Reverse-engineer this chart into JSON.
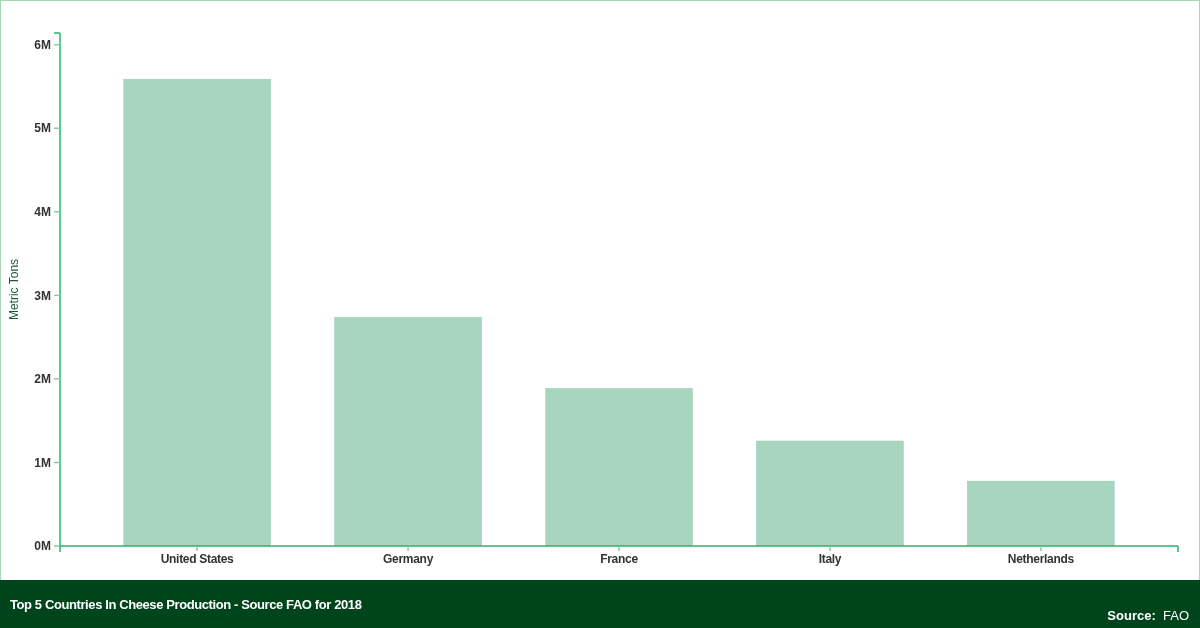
{
  "chart_data": {
    "type": "bar",
    "title": "Top 5 Countries In Cheese Production - Source FAO for 2018",
    "ylabel": "Metric Tons",
    "categories": [
      "United States",
      "Germany",
      "France",
      "Italy",
      "Netherlands"
    ],
    "values": [
      5590000,
      2740000,
      1890000,
      1260000,
      780000
    ],
    "color": "#a8d5c0",
    "ylim": [
      0,
      6140000
    ],
    "yticks": [
      {
        "value": 0,
        "label": "0M"
      },
      {
        "value": 1000000,
        "label": "1M"
      },
      {
        "value": 2000000,
        "label": "2M"
      },
      {
        "value": 3000000,
        "label": "3M"
      },
      {
        "value": 4000000,
        "label": "4M"
      },
      {
        "value": 5000000,
        "label": "5M"
      },
      {
        "value": 6000000,
        "label": "6M"
      }
    ],
    "annotations": [
      "Source: FAO"
    ]
  }
}
